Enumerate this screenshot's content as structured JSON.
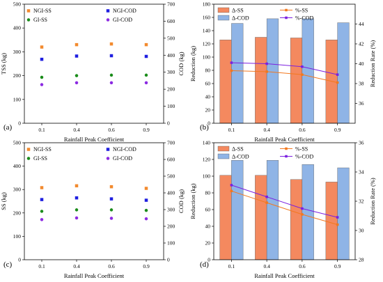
{
  "chart_data": [
    {
      "panel_label": "(a)",
      "type": "scatter",
      "categories": [
        "0.1",
        "0.4",
        "0.6",
        "0.9"
      ],
      "xlabel": "Rainfall Peak Coefficient",
      "ylabel_left": "TSS (kg)",
      "ylabel_right": "COD (kg)",
      "ylim_left": [
        0,
        500
      ],
      "yticks_left": [
        0,
        100,
        200,
        300,
        400,
        500
      ],
      "ylim_right": [
        0,
        700
      ],
      "yticks_right": [
        0,
        100,
        200,
        300,
        400,
        500,
        600,
        700
      ],
      "series": [
        {
          "name": "NGI-SS",
          "axis": "left",
          "color": "#F28A2E",
          "marker": "square",
          "values": [
            320,
            330,
            333,
            330
          ]
        },
        {
          "name": "GI-SS",
          "axis": "left",
          "color": "#1A8C1A",
          "marker": "circle",
          "values": [
            193,
            200,
            202,
            202
          ]
        },
        {
          "name": "NGI-COD",
          "axis": "right",
          "color": "#1F1FE0",
          "marker": "square",
          "values": [
            376,
            395,
            397,
            393
          ]
        },
        {
          "name": "GI-COD",
          "axis": "right",
          "color": "#8C2BE2",
          "marker": "circle",
          "values": [
            227,
            238,
            238,
            238
          ]
        }
      ]
    },
    {
      "panel_label": "(b)",
      "type": "bar",
      "categories": [
        "0.1",
        "0.4",
        "0.6",
        "0.9"
      ],
      "xlabel": "Rainfall Peak Coefficient",
      "ylabel_left": "Reduction (kg)",
      "ylabel_right": "Reduction Rate (%)",
      "ylim_left": [
        0,
        180
      ],
      "yticks_left": [
        0,
        20,
        40,
        60,
        80,
        100,
        120,
        140,
        160,
        180
      ],
      "ylim_right": [
        34,
        46
      ],
      "yticks_right": [
        36,
        38,
        40,
        42,
        44
      ],
      "bar_series": [
        {
          "name": "Δ-SS",
          "color": "#F4895F",
          "values": [
            126,
            130,
            129,
            126
          ]
        },
        {
          "name": "Δ-COD",
          "color": "#8FB4E6",
          "values": [
            151,
            158,
            158,
            152
          ]
        }
      ],
      "line_series": [
        {
          "name": "%-SS",
          "color": "#F2781F",
          "marker": "square",
          "values": [
            39.3,
            39.2,
            38.9,
            38.1
          ]
        },
        {
          "name": "%-COD",
          "color": "#7B1FE0",
          "marker": "square",
          "values": [
            40.1,
            40.0,
            39.7,
            38.9
          ]
        }
      ]
    },
    {
      "panel_label": "(c)",
      "type": "scatter",
      "categories": [
        "0.1",
        "0.4",
        "0.6",
        "0.9"
      ],
      "xlabel": "Rainfall Peak Coefficient",
      "ylabel_left": "SS (kg)",
      "ylabel_right": "COD (kg)",
      "ylim_left": [
        0,
        500
      ],
      "yticks_left": [
        0,
        100,
        200,
        300,
        400,
        500
      ],
      "ylim_right": [
        0,
        700
      ],
      "yticks_right": [
        0,
        100,
        200,
        300,
        400,
        500,
        600,
        700
      ],
      "series": [
        {
          "name": "NGI-SS",
          "axis": "left",
          "color": "#F28A2E",
          "marker": "square",
          "values": [
            308,
            316,
            312,
            305
          ]
        },
        {
          "name": "GI-SS",
          "axis": "left",
          "color": "#1A8C1A",
          "marker": "circle",
          "values": [
            207,
            213,
            213,
            211
          ]
        },
        {
          "name": "NGI-COD",
          "axis": "right",
          "color": "#1F1FE0",
          "marker": "square",
          "values": [
            360,
            370,
            364,
            356
          ]
        },
        {
          "name": "GI-COD",
          "axis": "right",
          "color": "#8C2BE2",
          "marker": "circle",
          "values": [
            240,
            250,
            248,
            245
          ]
        }
      ]
    },
    {
      "panel_label": "(d)",
      "type": "bar",
      "categories": [
        "0.1",
        "0.4",
        "0.6",
        "0.9"
      ],
      "xlabel": "Rainfall Peak Coefficient",
      "ylabel_left": "Reduction (kg)",
      "ylabel_right": "Reduction Rate (%)",
      "ylim_left": [
        0,
        140
      ],
      "yticks_left": [
        0,
        20,
        40,
        60,
        80,
        100,
        120,
        140
      ],
      "ylim_right": [
        28,
        36
      ],
      "yticks_right": [
        28,
        30,
        32,
        34,
        36
      ],
      "bar_series": [
        {
          "name": "Δ-SS",
          "color": "#F4895F",
          "values": [
            101,
            101,
            96,
            93
          ]
        },
        {
          "name": "Δ-COD",
          "color": "#8FB4E6",
          "values": [
            119,
            119,
            114,
            110
          ]
        }
      ],
      "line_series": [
        {
          "name": "%-SS",
          "color": "#F2781F",
          "marker": "square",
          "values": [
            32.7,
            31.9,
            31.1,
            30.4
          ]
        },
        {
          "name": "%-COD",
          "color": "#7B1FE0",
          "marker": "square",
          "values": [
            33.1,
            32.3,
            31.5,
            30.9
          ]
        }
      ]
    }
  ]
}
